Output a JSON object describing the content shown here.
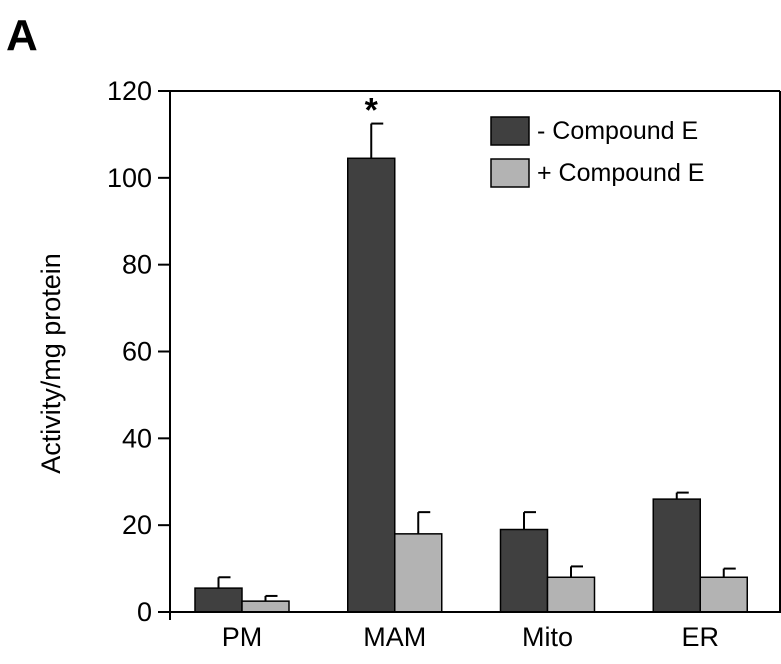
{
  "panel_label": "A",
  "chart_data": {
    "type": "bar",
    "title": "",
    "xlabel": "",
    "ylabel": "Activity/mg protein",
    "ylim": [
      0,
      120
    ],
    "yticks": [
      0,
      20,
      40,
      60,
      80,
      100,
      120
    ],
    "categories": [
      "PM",
      "MAM",
      "Mito",
      "ER"
    ],
    "series": [
      {
        "name": "- Compound E",
        "color": "#404040",
        "values": [
          5.5,
          104.5,
          19,
          26
        ],
        "errors": [
          2.5,
          8,
          4,
          1.5
        ]
      },
      {
        "name": "+ Compound E",
        "color": "#b3b3b3",
        "values": [
          2.5,
          18,
          8,
          8
        ],
        "errors": [
          1.2,
          5,
          2.5,
          2
        ]
      }
    ],
    "annotations": [
      {
        "category": "MAM",
        "series": 0,
        "text": "*"
      }
    ],
    "legend": {
      "position": "top-right"
    },
    "grid": false
  }
}
